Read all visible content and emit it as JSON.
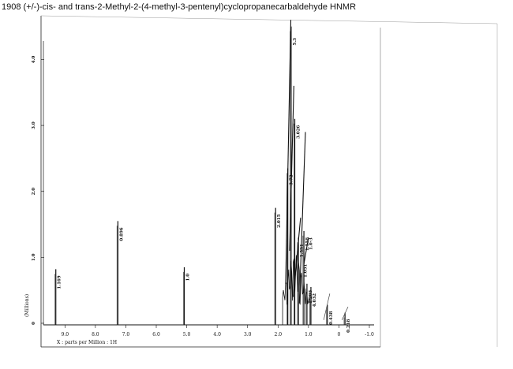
{
  "header": {
    "title": "1908 (+/-)-cis- and trans-2-Methyl-2-(4-methyl-3-pentenyl)cyclopropanecarbaldehyde HNMR"
  },
  "chart_data": {
    "type": "line",
    "title": "1908 (+/-)-cis- and trans-2-Methyl-2-(4-methyl-3-pentenyl)cyclopropanecarbaldehyde HNMR",
    "xlabel": "X : parts per Million : 1H",
    "ylabel": "(Millions)",
    "xlim": [
      9.5,
      -1.0
    ],
    "ylim": [
      0,
      4.4
    ],
    "x_ticks": [
      "9.0",
      "8.0",
      "7.0",
      "6.0",
      "5.0",
      "4.0",
      "3.0",
      "2.0",
      "1.0",
      "0",
      "-1.0"
    ],
    "y_ticks": [
      "0",
      "1.0",
      "2.0",
      "3.0",
      "4.0"
    ],
    "peaks": [
      {
        "x": 9.3,
        "y": 0.82,
        "label": "1.169"
      },
      {
        "x": 7.26,
        "y": 1.55,
        "label": "0.896"
      },
      {
        "x": 5.08,
        "y": 0.85,
        "label": "1.0"
      },
      {
        "x": 2.08,
        "y": 1.75,
        "label": "2.015"
      },
      {
        "x": 1.68,
        "y": 2.35,
        "label": "3.72"
      },
      {
        "x": 1.57,
        "y": 4.5,
        "label": "5.3"
      },
      {
        "x": 1.45,
        "y": 3.1,
        "label": "3.026"
      },
      {
        "x": 1.33,
        "y": 1.3,
        "label": "1.591"
      },
      {
        "x": 1.15,
        "y": 1.4,
        "label": "1.558"
      },
      {
        "x": 1.05,
        "y": 0.6,
        "label": "1.283"
      },
      {
        "x": 0.92,
        "y": 0.55,
        "label": "4.032"
      },
      {
        "x": 0.38,
        "y": 0.28,
        "label": "0.438"
      },
      {
        "x": -0.2,
        "y": 0.16,
        "label": "0.218"
      }
    ],
    "extra_labels": [
      "1.051",
      "1.0-3"
    ]
  }
}
